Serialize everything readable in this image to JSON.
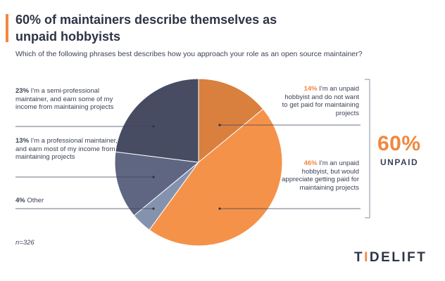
{
  "title": "60% of maintainers describe themselves as unpaid hobbyists",
  "subtitle": "Which of the following phrases best describes how you approach your role as an open source maintainer?",
  "colors": {
    "accent": "#f0883f",
    "dark": "#3c4257"
  },
  "chart_data": {
    "type": "pie",
    "start_angle_deg": 0,
    "direction": "clockwise",
    "slices": [
      {
        "label": "I'm an unpaid hobbyist and do not want to get paid for maintaining projects",
        "value": 14,
        "pct_label": "14%",
        "color": "#d9803f",
        "side": "right"
      },
      {
        "label": "I'm an unpaid hobbyist, but would appreciate getting paid for maintaining projects",
        "value": 46,
        "pct_label": "46%",
        "color": "#f5924a",
        "side": "right"
      },
      {
        "label": "Other",
        "value": 4,
        "pct_label": "4%",
        "color": "#8592ad",
        "side": "left"
      },
      {
        "label": "I'm a professional maintainer, and earn most of my income from maintaining projects",
        "value": 13,
        "pct_label": "13%",
        "color": "#5f6682",
        "side": "left"
      },
      {
        "label": "I'm a semi-professional maintainer, and earn some of my income from maintaining projects",
        "value": 23,
        "pct_label": "23%",
        "color": "#474c63",
        "side": "left"
      }
    ],
    "group": {
      "value_label": "60%",
      "label": "UNPAID"
    }
  },
  "labels": {
    "semi_pct": "23%",
    "semi_text": "I'm a semi-professional maintainer, and earn some of my income from maintaining projects",
    "pro_pct": "13%",
    "pro_text": "I'm a professional maintainer, and earn most of my income from maintaining projects",
    "other_pct": "4%",
    "other_text": "Other",
    "nopay_pct": "14%",
    "nopay_text": "I'm an unpaid hobbyist and do not want to get paid for maintaining projects",
    "wantpay_pct": "46%",
    "wantpay_text": "I'm an unpaid hobbyist, but would appreciate getting paid for maintaining projects"
  },
  "unpaid": {
    "value": "60%",
    "label": "UNPAID"
  },
  "sample_note": "n=326",
  "logo": {
    "pre": "T",
    "i": "I",
    "post": "DELIFT"
  }
}
